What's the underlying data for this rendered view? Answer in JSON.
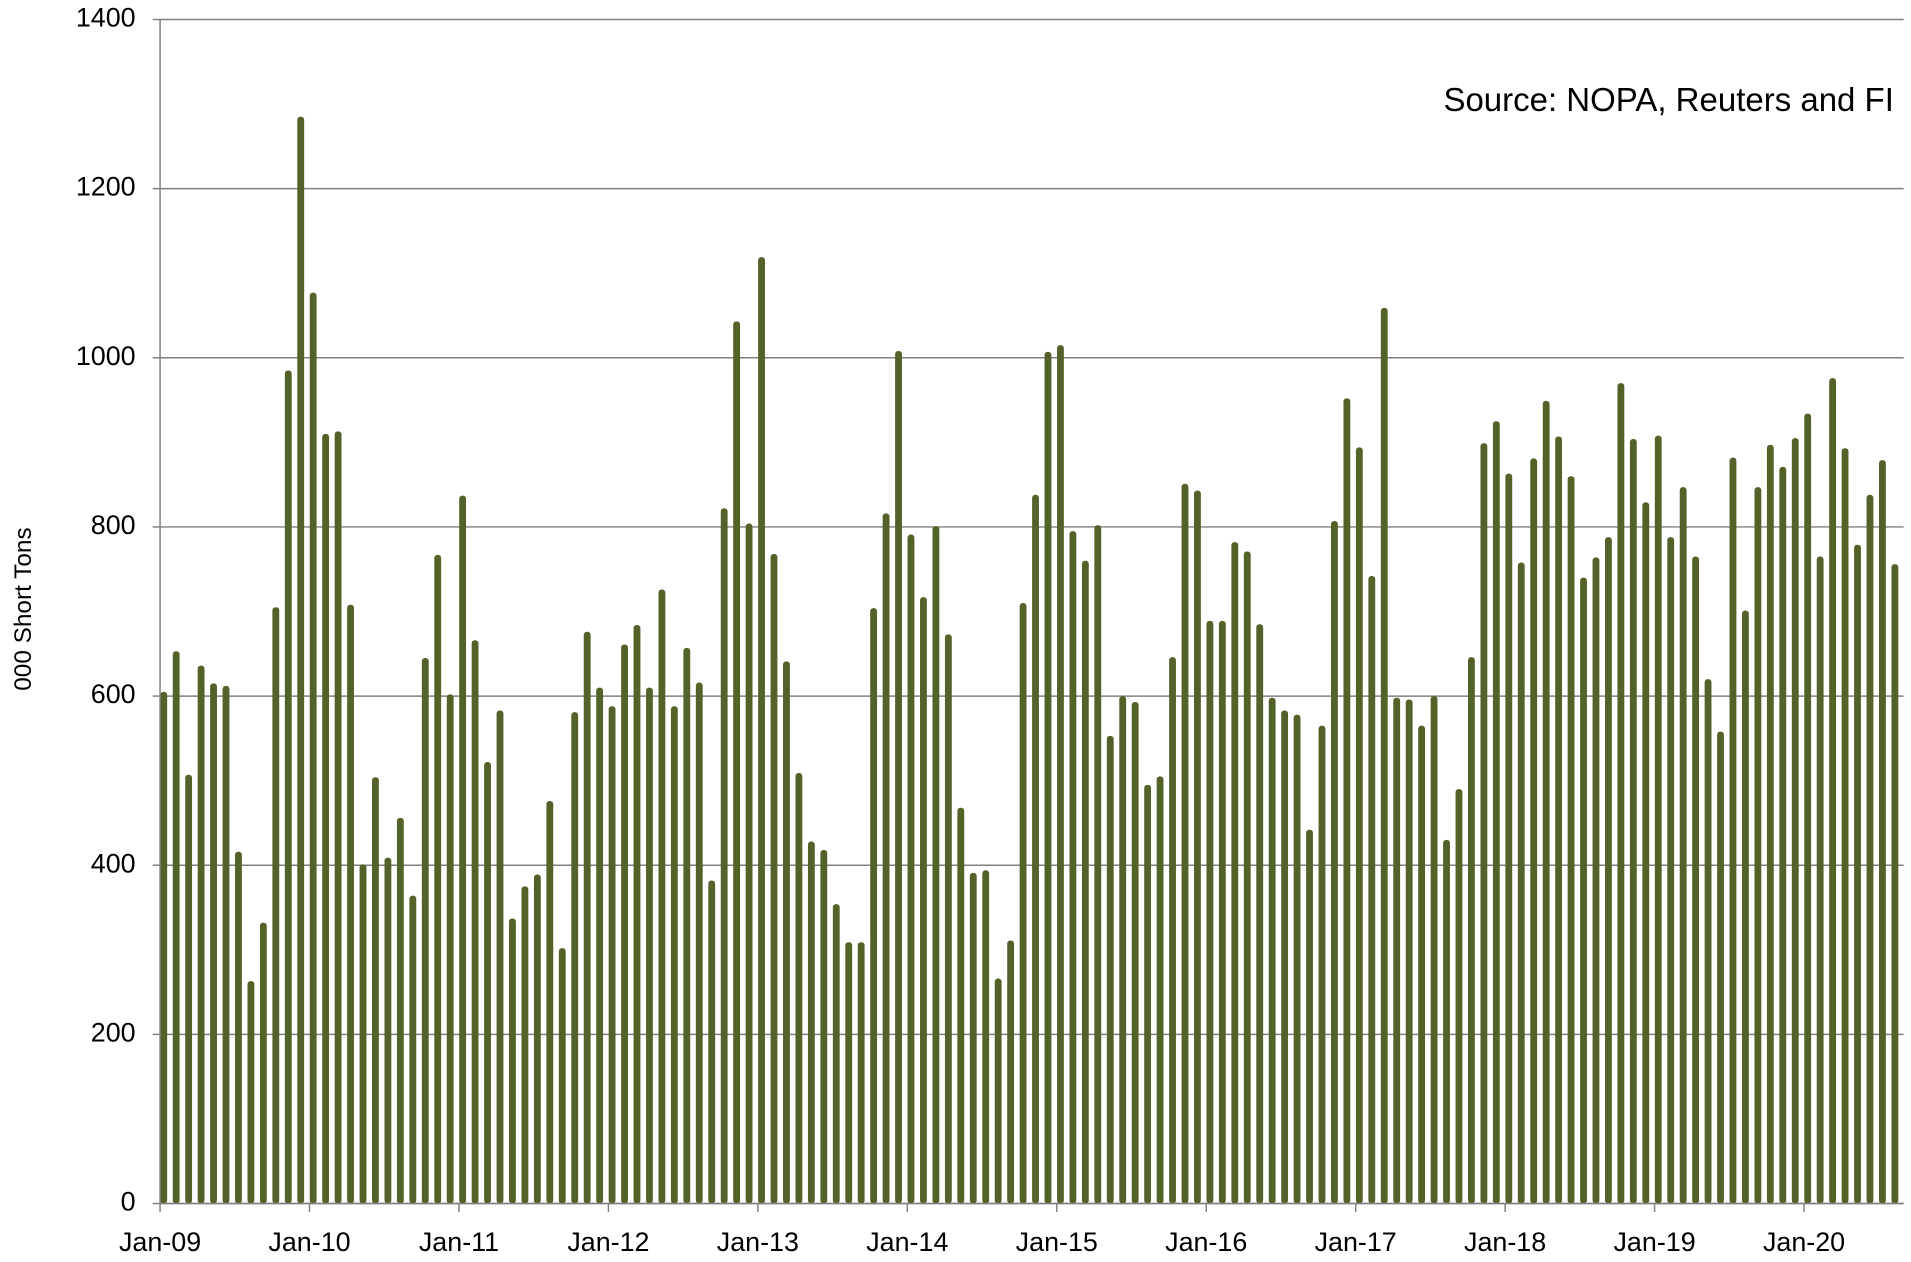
{
  "chart_data": {
    "type": "bar",
    "annotation": "Source: NOPA, Reuters and FI",
    "y_label": "000 Short Tons",
    "color": "#536228",
    "grid": true,
    "ylim": [
      0,
      1400
    ],
    "yticks": [
      0,
      200,
      400,
      600,
      800,
      1000,
      1200,
      1400
    ],
    "categories": [
      "Jan-09",
      null,
      null,
      null,
      null,
      null,
      null,
      null,
      null,
      null,
      null,
      null,
      "Jan-10",
      null,
      null,
      null,
      null,
      null,
      null,
      null,
      null,
      null,
      null,
      null,
      "Jan-11",
      null,
      null,
      null,
      null,
      null,
      null,
      null,
      null,
      null,
      null,
      null,
      "Jan-12",
      null,
      null,
      null,
      null,
      null,
      null,
      null,
      null,
      null,
      null,
      null,
      "Jan-13",
      null,
      null,
      null,
      null,
      null,
      null,
      null,
      null,
      null,
      null,
      null,
      "Jan-14",
      null,
      null,
      null,
      null,
      null,
      null,
      null,
      null,
      null,
      null,
      null,
      "Jan-15",
      null,
      null,
      null,
      null,
      null,
      null,
      null,
      null,
      null,
      null,
      null,
      "Jan-16",
      null,
      null,
      null,
      null,
      null,
      null,
      null,
      null,
      null,
      null,
      null,
      "Jan-17",
      null,
      null,
      null,
      null,
      null,
      null,
      null,
      null,
      null,
      null,
      null,
      "Jan-18",
      null,
      null,
      null,
      null,
      null,
      null,
      null,
      null,
      null,
      null,
      null,
      "Jan-19",
      null,
      null,
      null,
      null,
      null,
      null,
      null,
      null,
      null,
      null,
      null,
      "Jan-20",
      null,
      null,
      null,
      null,
      null,
      null,
      null
    ],
    "values": [
      605,
      653,
      507,
      636,
      615,
      612,
      416,
      263,
      332,
      705,
      985,
      1285,
      1077,
      910,
      913,
      708,
      401,
      504,
      409,
      456,
      364,
      645,
      767,
      602,
      837,
      666,
      522,
      583,
      337,
      375,
      389,
      476,
      302,
      581,
      676,
      610,
      588,
      661,
      684,
      610,
      726,
      588,
      657,
      616,
      382,
      822,
      1043,
      804,
      1119,
      768,
      641,
      509,
      428,
      418,
      354,
      309,
      309,
      704,
      816,
      1008,
      791,
      717,
      801,
      673,
      468,
      391,
      394,
      266,
      311,
      710,
      838,
      1007,
      1015,
      795,
      760,
      802,
      553,
      600,
      593,
      495,
      505,
      646,
      851,
      843,
      689,
      689,
      782,
      771,
      685,
      598,
      583,
      578,
      442,
      565,
      807,
      952,
      894,
      742,
      1059,
      598,
      596,
      565,
      600,
      430,
      490,
      646,
      899,
      925,
      863,
      758,
      881,
      949,
      907,
      860,
      740,
      764,
      788,
      970,
      904,
      829,
      908,
      788,
      847,
      765,
      620,
      558,
      882,
      701,
      847,
      897,
      871,
      905,
      934,
      765,
      976,
      893,
      779,
      838,
      879,
      756
    ]
  }
}
